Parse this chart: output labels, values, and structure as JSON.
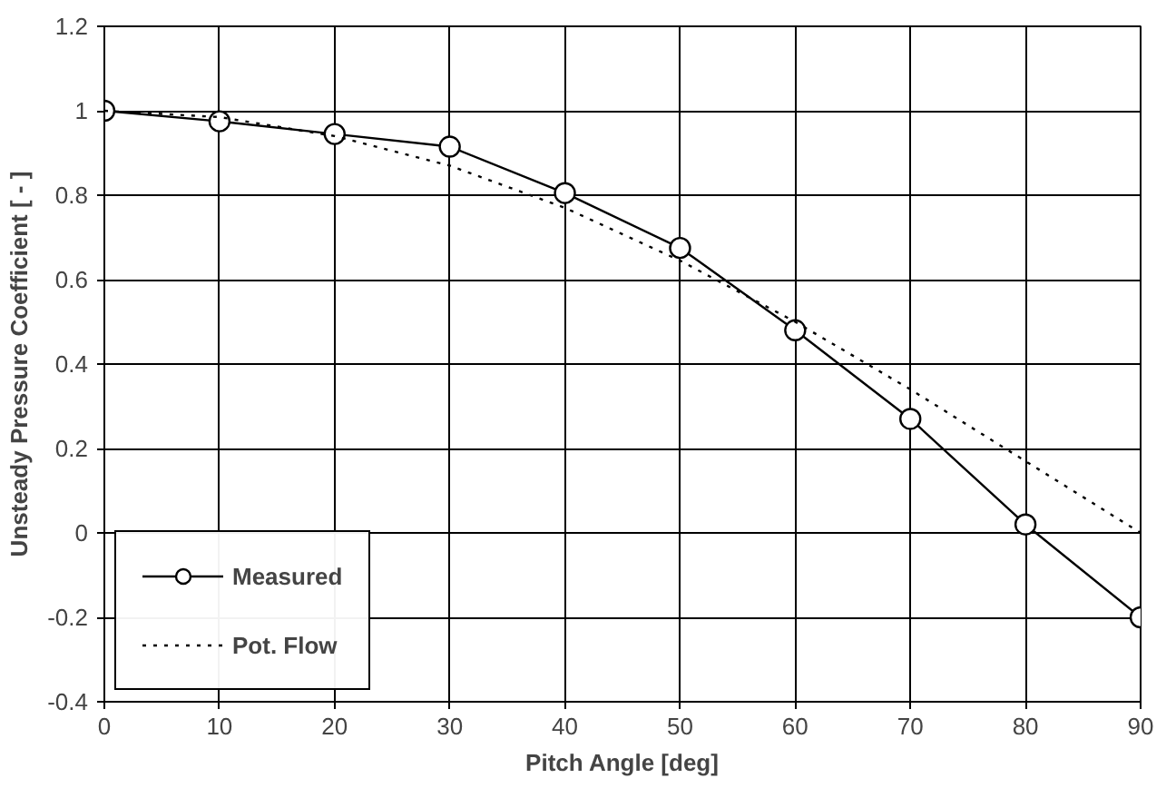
{
  "chart_data": {
    "type": "line",
    "xlabel": "Pitch Angle [deg]",
    "ylabel": "Unsteady Pressure Coefficient [ - ]",
    "xlim": [
      0,
      90
    ],
    "xticks": [
      0,
      10,
      20,
      30,
      40,
      50,
      60,
      70,
      80,
      90
    ],
    "ylim": [
      -0.4,
      1.2
    ],
    "yticks": [
      {
        "value": -0.4,
        "label": "-0.4"
      },
      {
        "value": -0.2,
        "label": "-0.2"
      },
      0,
      {
        "value": 0.2,
        "label": "0.2"
      },
      {
        "value": 0.4,
        "label": "0.4"
      },
      {
        "value": 0.6,
        "label": "0.6"
      },
      {
        "value": 0.8,
        "label": "0.8"
      },
      1,
      {
        "value": 1.2,
        "label": "1.2"
      }
    ],
    "grid": true,
    "legend": "bottom left",
    "series": [
      {
        "name": "Measured",
        "color": "#000000",
        "marker": "circle",
        "line_style": "solid",
        "x": [
          0,
          10,
          20,
          30,
          40,
          50,
          60,
          70,
          80,
          90
        ],
        "values": [
          1.0,
          0.975,
          0.945,
          0.915,
          0.805,
          0.675,
          0.48,
          0.27,
          0.02,
          -0.2
        ]
      },
      {
        "name": "Pot. Flow",
        "color": "#000000",
        "marker": "none",
        "line_style": "dotted",
        "x": [
          0,
          10,
          20,
          30,
          40,
          50,
          60,
          70,
          80,
          90
        ],
        "values": [
          1.0,
          0.985,
          0.94,
          0.87,
          0.77,
          0.645,
          0.5,
          0.34,
          0.17,
          0.0
        ]
      }
    ]
  }
}
